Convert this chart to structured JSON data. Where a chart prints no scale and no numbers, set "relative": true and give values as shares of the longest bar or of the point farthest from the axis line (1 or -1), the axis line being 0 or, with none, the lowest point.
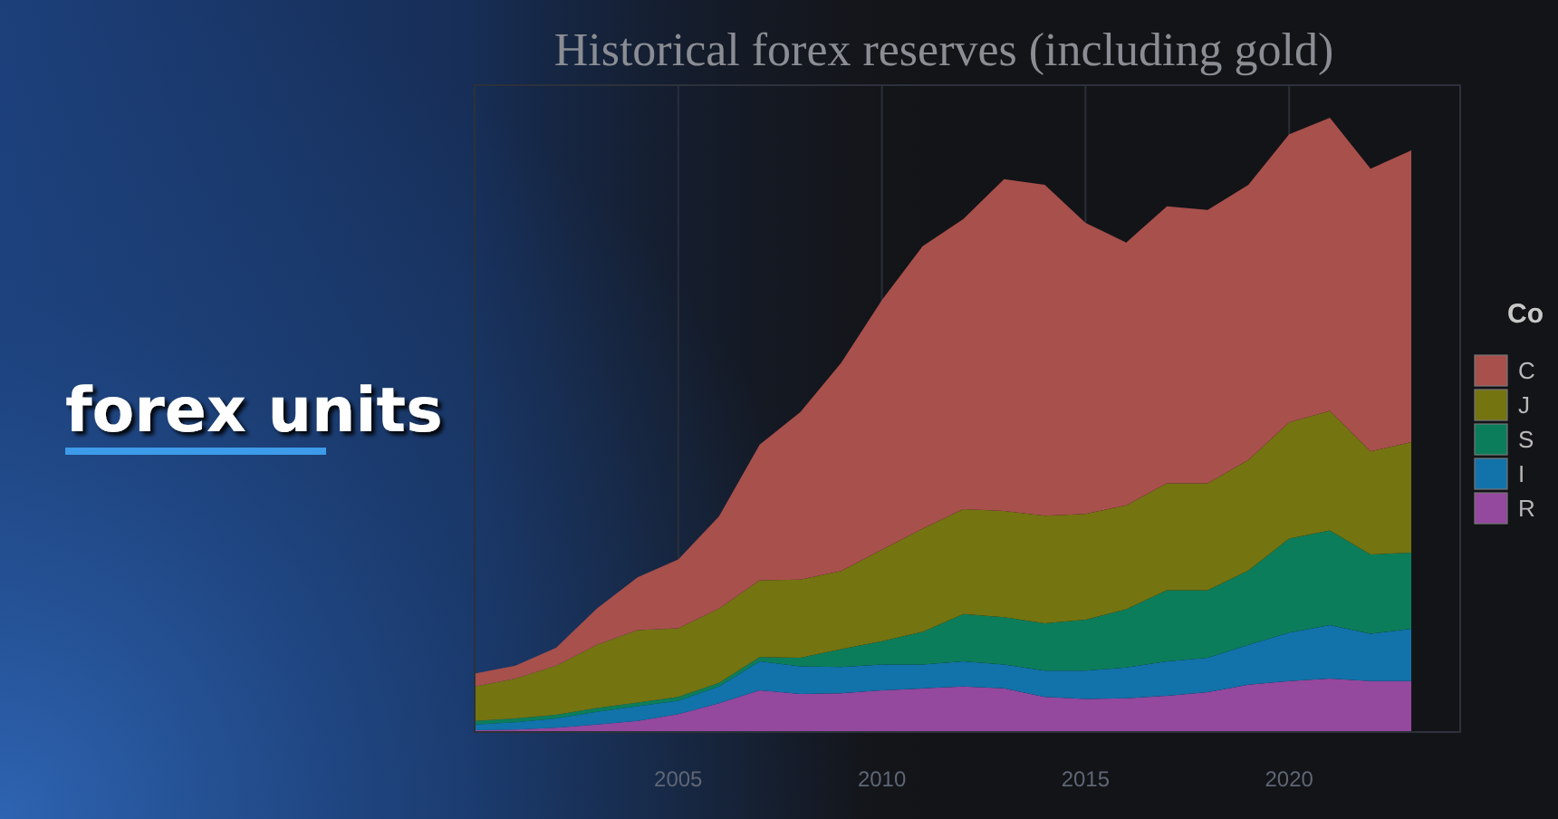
{
  "chart_data": {
    "type": "area",
    "title": "Historical forex reserves (including gold)",
    "annotations": [
      "forex units"
    ],
    "relative": true,
    "stacked": true,
    "x": [
      2000,
      2001,
      2002,
      2003,
      2004,
      2005,
      2006,
      2007,
      2008,
      2009,
      2010,
      2011,
      2012,
      2013,
      2014,
      2015,
      2016,
      2017,
      2018,
      2019,
      2020,
      2021,
      2022,
      2023
    ],
    "xlim": [
      2000,
      2024.2
    ],
    "xticks": [
      2005,
      2010,
      2015,
      2020
    ],
    "grid": "x",
    "legend": "right",
    "legend_title": "Co",
    "series": [
      {
        "name": "R",
        "color": "#94489e",
        "values": [
          0.003,
          0.004,
          0.007,
          0.012,
          0.018,
          0.029,
          0.047,
          0.068,
          0.062,
          0.063,
          0.068,
          0.071,
          0.074,
          0.071,
          0.057,
          0.054,
          0.055,
          0.059,
          0.065,
          0.077,
          0.083,
          0.087,
          0.083,
          0.083
        ]
      },
      {
        "name": "I",
        "color": "#1272aa",
        "values": [
          0.009,
          0.012,
          0.015,
          0.021,
          0.024,
          0.022,
          0.027,
          0.047,
          0.045,
          0.043,
          0.042,
          0.039,
          0.041,
          0.039,
          0.043,
          0.046,
          0.05,
          0.056,
          0.056,
          0.065,
          0.079,
          0.087,
          0.077,
          0.085
        ]
      },
      {
        "name": "S",
        "color": "#0c7d5a",
        "values": [
          0.006,
          0.006,
          0.006,
          0.006,
          0.006,
          0.006,
          0.006,
          0.007,
          0.014,
          0.029,
          0.038,
          0.053,
          0.077,
          0.077,
          0.077,
          0.083,
          0.095,
          0.116,
          0.11,
          0.121,
          0.153,
          0.154,
          0.129,
          0.124
        ]
      },
      {
        "name": "J",
        "color": "#747410",
        "values": [
          0.056,
          0.065,
          0.08,
          0.103,
          0.118,
          0.112,
          0.121,
          0.125,
          0.127,
          0.127,
          0.149,
          0.168,
          0.171,
          0.173,
          0.175,
          0.172,
          0.169,
          0.174,
          0.174,
          0.18,
          0.189,
          0.195,
          0.168,
          0.18
        ]
      },
      {
        "name": "C",
        "color": "#a8504c",
        "values": [
          0.021,
          0.021,
          0.029,
          0.059,
          0.086,
          0.112,
          0.15,
          0.221,
          0.273,
          0.339,
          0.406,
          0.46,
          0.472,
          0.54,
          0.539,
          0.474,
          0.428,
          0.451,
          0.445,
          0.448,
          0.469,
          0.477,
          0.46,
          0.475
        ]
      }
    ]
  }
}
